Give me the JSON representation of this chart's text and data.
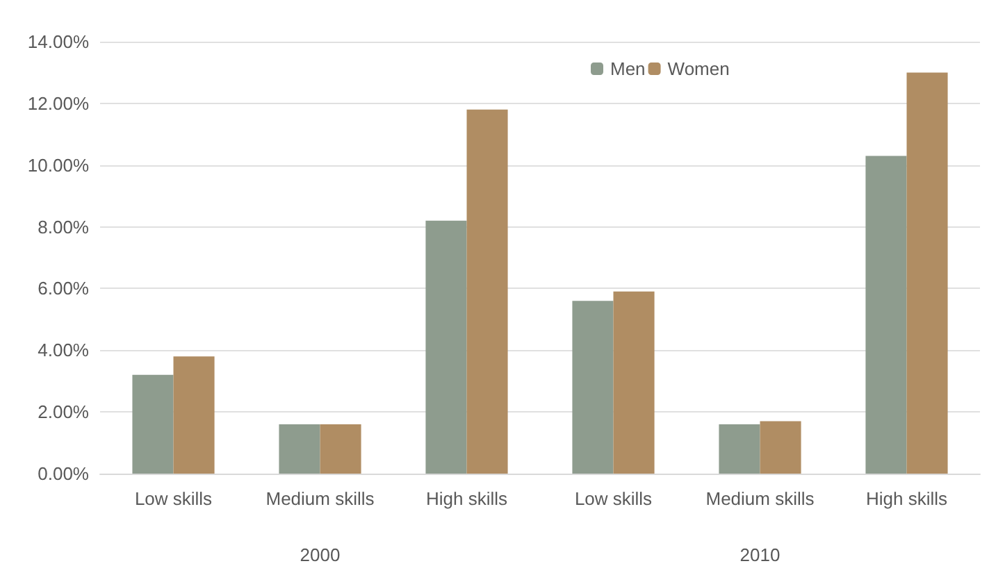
{
  "chart_data": {
    "type": "bar",
    "categories": [
      "Low skills",
      "Medium skills",
      "High skills",
      "Low skills",
      "Medium skills",
      "High skills"
    ],
    "series": [
      {
        "name": "Men",
        "color": "#8e9c8e",
        "values": [
          3.2,
          1.6,
          8.2,
          5.6,
          1.6,
          10.3
        ]
      },
      {
        "name": "Women",
        "color": "#b08d63",
        "values": [
          3.8,
          1.6,
          11.8,
          5.9,
          1.7,
          13.0
        ]
      }
    ],
    "annotations": [
      "2000",
      "2010"
    ],
    "ylim": [
      0,
      14
    ],
    "yticks": [
      {
        "value": 0,
        "label": "0.00%"
      },
      {
        "value": 2,
        "label": "2.00%"
      },
      {
        "value": 4,
        "label": "4.00%"
      },
      {
        "value": 6,
        "label": "6.00%"
      },
      {
        "value": 8,
        "label": "8.00%"
      },
      {
        "value": 10,
        "label": "10.00%"
      },
      {
        "value": 12,
        "label": "12.00%"
      },
      {
        "value": 14,
        "label": "14.00%"
      }
    ],
    "grid": "y",
    "legend": "top right"
  }
}
